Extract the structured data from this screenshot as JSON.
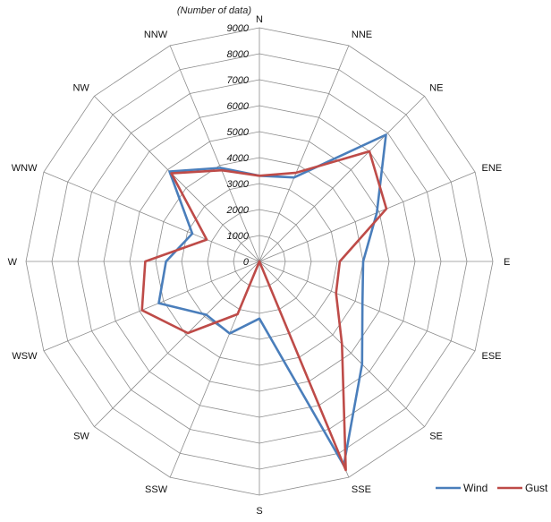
{
  "chart_data": {
    "type": "radar",
    "title": "",
    "scale_label": "(Number of data)",
    "directions": [
      "N",
      "NNE",
      "NE",
      "ENE",
      "E",
      "ESE",
      "SE",
      "SSE",
      "S",
      "SSW",
      "SW",
      "WSW",
      "W",
      "WNW",
      "NW",
      "NNW"
    ],
    "ticks": [
      0,
      1000,
      2000,
      3000,
      4000,
      5000,
      6000,
      7000,
      8000,
      9000
    ],
    "rmax": 9000,
    "grid": true,
    "legend_position": "bottom-right",
    "series": [
      {
        "name": "Wind",
        "color": "#4a7ebb",
        "values": [
          3300,
          3500,
          6900,
          4900,
          4000,
          4300,
          5600,
          8500,
          2200,
          3000,
          2900,
          4200,
          3600,
          2800,
          4900,
          3900
        ]
      },
      {
        "name": "Gust",
        "color": "#be4b48",
        "values": [
          3300,
          3700,
          6000,
          5300,
          3100,
          3200,
          4500,
          8700,
          0,
          2200,
          3900,
          4900,
          4400,
          2200,
          4800,
          3800
        ]
      }
    ]
  }
}
